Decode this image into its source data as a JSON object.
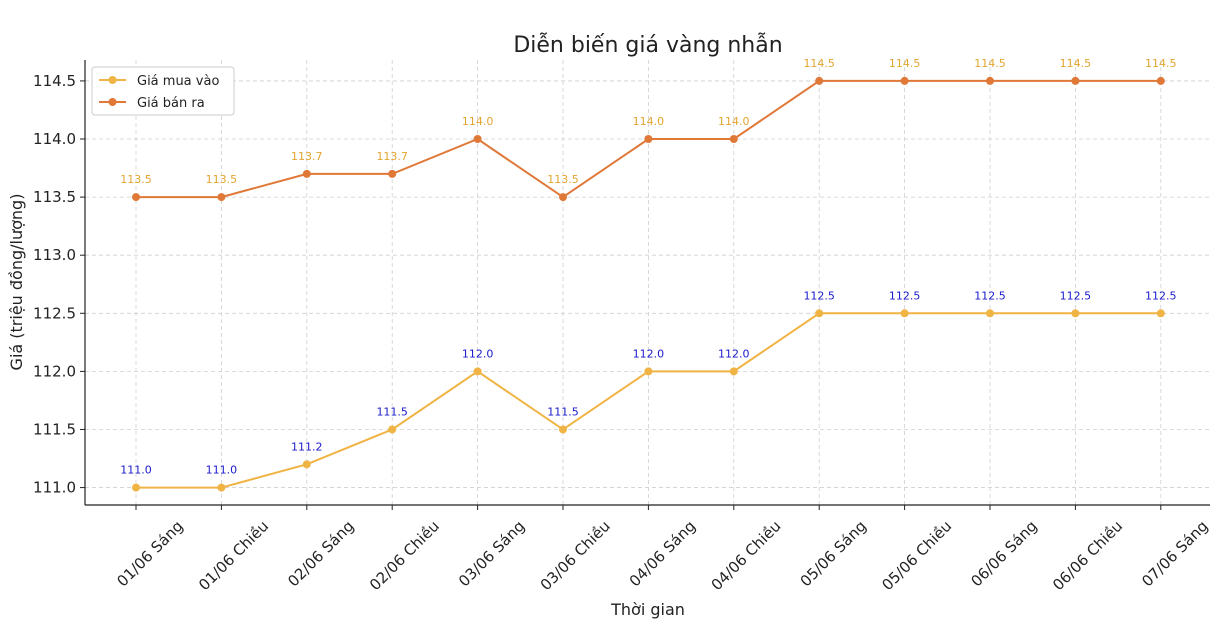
{
  "chart_data": {
    "type": "line",
    "title": "Diễn biến giá vàng nhẫn",
    "xlabel": "Thời gian",
    "ylabel": "Giá (triệu đồng/lượng)",
    "categories": [
      "01/06 Sáng",
      "01/06 Chiều",
      "02/06 Sáng",
      "02/06 Chiều",
      "03/06 Sáng",
      "03/06 Chiều",
      "04/06 Sáng",
      "04/06 Chiều",
      "05/06 Sáng",
      "05/06 Chiều",
      "06/06 Sáng",
      "06/06 Chiều",
      "07/06 Sáng"
    ],
    "ylim": [
      110.85,
      114.68
    ],
    "yticks": [
      "111.0",
      "111.5",
      "112.0",
      "112.5",
      "113.0",
      "113.5",
      "114.0",
      "114.5"
    ],
    "grid": true,
    "legend_position": "top-left",
    "series": [
      {
        "name": "Giá mua vào",
        "color": "#f0b445",
        "label_color": "#1a1acd",
        "values": [
          111.0,
          111.0,
          111.2,
          111.5,
          112.0,
          111.5,
          112.0,
          112.0,
          112.5,
          112.5,
          112.5,
          112.5,
          112.5
        ],
        "labels": [
          "111.0",
          "111.0",
          "111.2",
          "111.5",
          "112.0",
          "111.5",
          "112.0",
          "112.0",
          "112.5",
          "112.5",
          "112.5",
          "112.5",
          "112.5"
        ]
      },
      {
        "name": "Giá bán ra",
        "color": "#e07838",
        "label_color": "#e3a52f",
        "values": [
          113.5,
          113.5,
          113.7,
          113.7,
          114.0,
          113.5,
          114.0,
          114.0,
          114.5,
          114.5,
          114.5,
          114.5,
          114.5
        ],
        "labels": [
          "113.5",
          "113.5",
          "113.7",
          "113.7",
          "114.0",
          "113.5",
          "114.0",
          "114.0",
          "114.5",
          "114.5",
          "114.5",
          "114.5",
          "114.5"
        ]
      }
    ]
  }
}
